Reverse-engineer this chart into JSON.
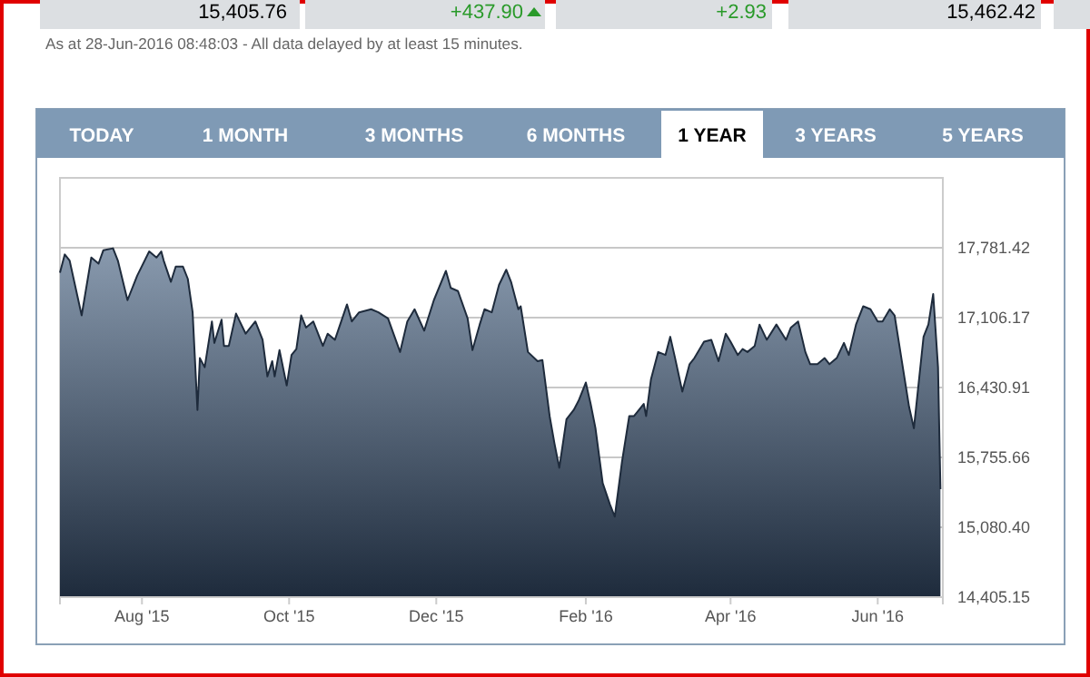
{
  "chart_data": {
    "type": "area",
    "annotations": [
      "15,405.76",
      "+437.90",
      "+2.93",
      "15,462.42",
      "As at 28-Jun-2016 08:48:03 - All data delayed by at least 15 minutes.",
      "TODAY",
      "1 MONTH",
      "3 MONTHS",
      "6 MONTHS",
      "1 YEAR",
      "3 YEARS",
      "5 YEARS"
    ],
    "xlim": [
      "2015-06-28",
      "2016-06-28"
    ],
    "xticks": [
      {
        "value": "2015-08-01",
        "label": "Aug '15"
      },
      {
        "value": "2015-10-01",
        "label": "Oct '15"
      },
      {
        "value": "2015-12-01",
        "label": "Dec '15"
      },
      {
        "value": "2016-02-01",
        "label": "Feb '16"
      },
      {
        "value": "2016-04-01",
        "label": "Apr '16"
      },
      {
        "value": "2016-06-01",
        "label": "Jun '16"
      }
    ],
    "ylim": [
      14405.15,
      18456.67
    ],
    "yticks": [
      {
        "value": 14405.15,
        "label": "14,405.15"
      },
      {
        "value": 15080.4,
        "label": "15,080.40"
      },
      {
        "value": 15755.66,
        "label": "15,755.66"
      },
      {
        "value": 16430.91,
        "label": "16,430.91"
      },
      {
        "value": 17106.17,
        "label": "17,106.17"
      },
      {
        "value": 17781.42,
        "label": "17,781.42"
      }
    ],
    "grid": "y",
    "series": [
      {
        "color": "#1e2b3c",
        "x": [
          "2015-06-28",
          "2015-06-30",
          "2015-07-02",
          "2015-07-07",
          "2015-07-11",
          "2015-07-14",
          "2015-07-16",
          "2015-07-20",
          "2015-07-22",
          "2015-07-26",
          "2015-07-30",
          "2015-08-04",
          "2015-08-07",
          "2015-08-09",
          "2015-08-10",
          "2015-08-13",
          "2015-08-15",
          "2015-08-18",
          "2015-08-20",
          "2015-08-22",
          "2015-08-24",
          "2015-08-25",
          "2015-08-27",
          "2015-08-30",
          "2015-08-31",
          "2015-09-03",
          "2015-09-04",
          "2015-09-06",
          "2015-09-09",
          "2015-09-13",
          "2015-09-17",
          "2015-09-20",
          "2015-09-22",
          "2015-09-24",
          "2015-09-25",
          "2015-09-27",
          "2015-09-30",
          "2015-10-02",
          "2015-10-04",
          "2015-10-06",
          "2015-10-08",
          "2015-10-11",
          "2015-10-15",
          "2015-10-17",
          "2015-10-20",
          "2015-10-25",
          "2015-10-27",
          "2015-10-30",
          "2015-11-04",
          "2015-11-07",
          "2015-11-11",
          "2015-11-16",
          "2015-11-19",
          "2015-11-22",
          "2015-11-26",
          "2015-11-30",
          "2015-12-05",
          "2015-12-07",
          "2015-12-10",
          "2015-12-14",
          "2015-12-16",
          "2015-12-19",
          "2015-12-21",
          "2015-12-24",
          "2015-12-27",
          "2015-12-30",
          "2016-01-01",
          "2016-01-04",
          "2016-01-05",
          "2016-01-08",
          "2016-01-12",
          "2016-01-14",
          "2016-01-17",
          "2016-01-19",
          "2016-01-21",
          "2016-01-24",
          "2016-01-27",
          "2016-01-29",
          "2016-02-01",
          "2016-02-03",
          "2016-02-05",
          "2016-02-08",
          "2016-02-11",
          "2016-02-13",
          "2016-02-16",
          "2016-02-19",
          "2016-02-21",
          "2016-02-25",
          "2016-02-26",
          "2016-02-28",
          "2016-03-02",
          "2016-03-05",
          "2016-03-07",
          "2016-03-09",
          "2016-03-12",
          "2016-03-15",
          "2016-03-17",
          "2016-03-21",
          "2016-03-24",
          "2016-03-27",
          "2016-03-30",
          "2016-04-01",
          "2016-04-04",
          "2016-04-06",
          "2016-04-08",
          "2016-04-11",
          "2016-04-13",
          "2016-04-16",
          "2016-04-20",
          "2016-04-24",
          "2016-04-26",
          "2016-04-29",
          "2016-05-02",
          "2016-05-04",
          "2016-05-07",
          "2016-05-10",
          "2016-05-12",
          "2016-05-15",
          "2016-05-18",
          "2016-05-20",
          "2016-05-23",
          "2016-05-26",
          "2016-05-29",
          "2016-06-01",
          "2016-06-03",
          "2016-06-06",
          "2016-06-08",
          "2016-06-11",
          "2016-06-14",
          "2016-06-16",
          "2016-06-20",
          "2016-06-22",
          "2016-06-24",
          "2016-06-26",
          "2016-06-27"
        ],
        "values": [
          17540,
          17717,
          17658,
          17128,
          17687,
          17628,
          17758,
          17776,
          17658,
          17275,
          17511,
          17746,
          17687,
          17746,
          17658,
          17452,
          17599,
          17599,
          17481,
          17157,
          16214,
          16715,
          16627,
          17069,
          16862,
          17086,
          16833,
          16833,
          17145,
          16951,
          17069,
          16892,
          16538,
          16686,
          16538,
          16792,
          16450,
          16745,
          16803,
          17128,
          17010,
          17069,
          16833,
          16951,
          16892,
          17234,
          17069,
          17157,
          17187,
          17157,
          17098,
          16774,
          17069,
          17187,
          16980,
          17275,
          17558,
          17393,
          17363,
          17098,
          16792,
          17039,
          17187,
          17157,
          17422,
          17569,
          17452,
          17187,
          17216,
          16774,
          16686,
          16697,
          16155,
          15890,
          15655,
          16126,
          16214,
          16303,
          16479,
          16273,
          16037,
          15507,
          15301,
          15183,
          15714,
          16155,
          16155,
          16273,
          16155,
          16509,
          16774,
          16745,
          16921,
          16715,
          16391,
          16656,
          16715,
          16874,
          16892,
          16686,
          16951,
          16874,
          16745,
          16803,
          16774,
          16833,
          17039,
          16892,
          17039,
          16892,
          17010,
          17069,
          16774,
          16656,
          16656,
          16715,
          16656,
          16715,
          16862,
          16745,
          17039,
          17216,
          17187,
          17069,
          17069,
          17187,
          17128,
          16686,
          16244,
          16037,
          16921,
          17039,
          17334,
          16627,
          15448
        ]
      }
    ]
  }
}
